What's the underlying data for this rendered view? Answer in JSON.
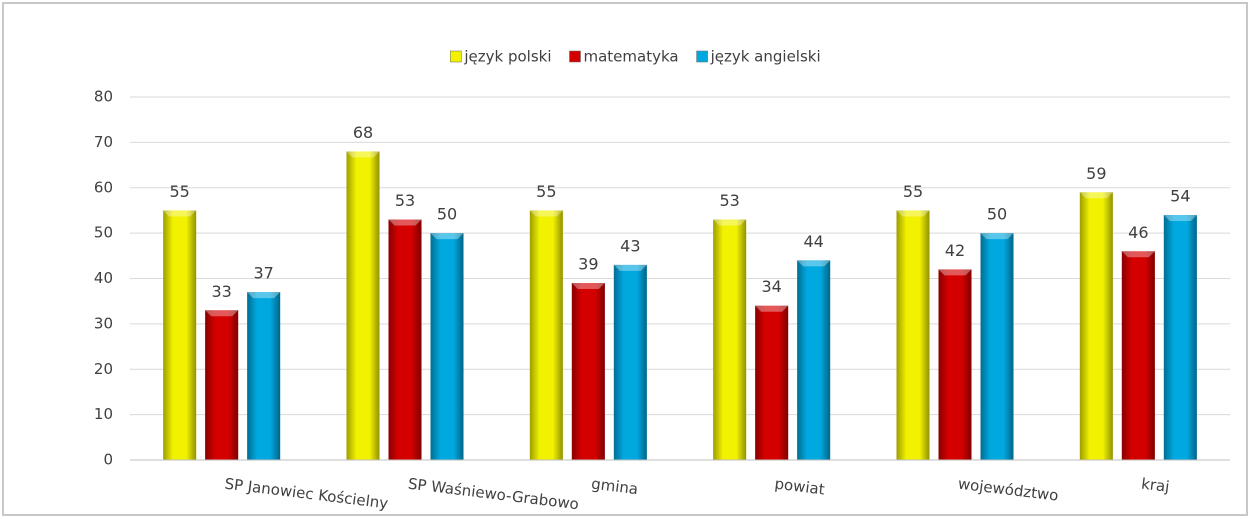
{
  "chart_data": {
    "type": "bar",
    "categories": [
      "SP Janowiec Kościelny",
      "SP Waśniewo-Grabowo",
      "gmina",
      "powiat",
      "województwo",
      "kraj"
    ],
    "series": [
      {
        "name": "język polski",
        "color": "#f2f200",
        "values": [
          55,
          68,
          55,
          53,
          55,
          59
        ]
      },
      {
        "name": "matematyka",
        "color": "#d40000",
        "values": [
          33,
          53,
          39,
          34,
          42,
          46
        ]
      },
      {
        "name": "język angielski",
        "color": "#00a8e0",
        "values": [
          37,
          50,
          43,
          44,
          50,
          54
        ]
      }
    ],
    "ylim": [
      0,
      80
    ],
    "yticks": [
      0,
      10,
      20,
      30,
      40,
      50,
      60,
      70,
      80
    ],
    "grid": true,
    "legend": "top"
  }
}
